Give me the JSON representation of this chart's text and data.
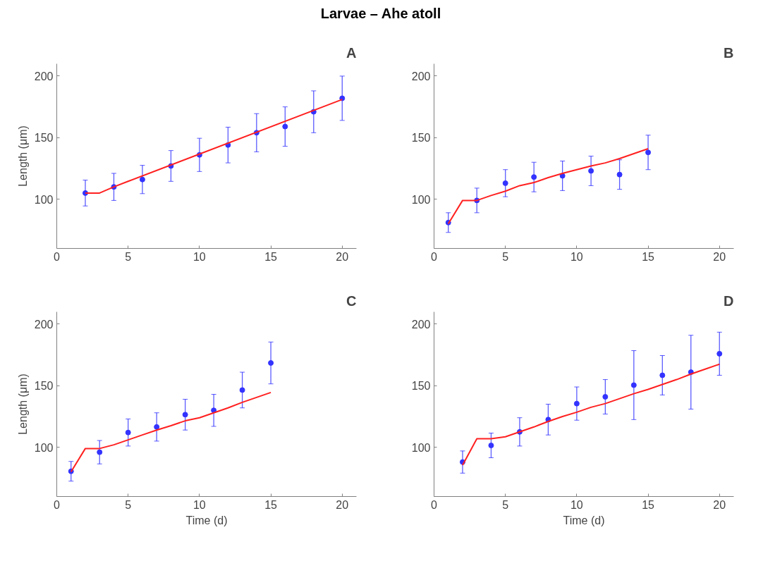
{
  "chart_data": [
    {
      "type": "scatter",
      "title": "A",
      "annotations": [
        "Larvae – Ahe atoll"
      ],
      "ylabel": "Length (μm)",
      "xlim": [
        0,
        21
      ],
      "xticks": [
        0,
        5,
        10,
        15,
        20
      ],
      "ylim": [
        60,
        210
      ],
      "yticks": [
        100,
        150,
        200
      ],
      "grid": false,
      "line_style": "solid",
      "series": [
        {
          "marker": "circle",
          "color": "#3333ff",
          "x": [
            2,
            4,
            6,
            8,
            10,
            12,
            14,
            16,
            18,
            20
          ],
          "values": [
            105,
            110,
            116,
            127,
            136,
            144,
            154,
            159,
            171,
            182
          ],
          "errors": [
            10.5,
            11,
            11.5,
            12.5,
            13.5,
            14.5,
            15.5,
            16,
            17,
            18
          ]
        },
        {
          "type": "line",
          "color": "#ff2020",
          "x": [
            2,
            3,
            4,
            5,
            20
          ],
          "values": [
            105,
            105,
            110,
            114.5,
            181
          ]
        }
      ]
    },
    {
      "type": "scatter",
      "title": "B",
      "xlim": [
        0,
        21
      ],
      "xticks": [
        0,
        5,
        10,
        15,
        20
      ],
      "ylim": [
        60,
        210
      ],
      "yticks": [
        100,
        150,
        200
      ],
      "grid": false,
      "line_style": "solid",
      "series": [
        {
          "marker": "circle",
          "color": "#3333ff",
          "x": [
            1,
            3,
            5,
            7,
            9,
            11,
            13,
            15
          ],
          "values": [
            81,
            99,
            113,
            118,
            119,
            123,
            120,
            138
          ],
          "errors": [
            8,
            10,
            11,
            12,
            12,
            12,
            12,
            14
          ]
        },
        {
          "type": "line",
          "color": "#ff2020",
          "x": [
            1,
            2,
            3,
            4,
            5,
            6,
            7,
            8,
            9,
            10,
            11,
            12,
            13,
            14,
            15
          ],
          "values": [
            80,
            99,
            99,
            103,
            106.5,
            111,
            113.5,
            117.5,
            121,
            124,
            127,
            129.5,
            133,
            137,
            141
          ]
        }
      ]
    },
    {
      "type": "scatter",
      "title": "C",
      "xlabel": "Time (d)",
      "ylabel": "Length (μm)",
      "xlim": [
        0,
        21
      ],
      "xticks": [
        0,
        5,
        10,
        15,
        20
      ],
      "ylim": [
        60,
        210
      ],
      "yticks": [
        100,
        150,
        200
      ],
      "grid": false,
      "line_style": "solid",
      "series": [
        {
          "marker": "circle",
          "color": "#3333ff",
          "x": [
            1,
            3,
            5,
            7,
            9,
            11,
            13,
            15
          ],
          "values": [
            80.5,
            96,
            112,
            116.5,
            126.5,
            130,
            146.5,
            168.5
          ],
          "errors": [
            8,
            9.5,
            11,
            11.5,
            12.5,
            13,
            14.5,
            17
          ]
        },
        {
          "type": "line",
          "color": "#ff2020",
          "x": [
            1,
            2,
            3,
            4,
            5,
            6,
            7,
            8,
            9,
            10,
            11,
            12,
            13,
            14,
            15
          ],
          "values": [
            80,
            99,
            99,
            102,
            106,
            110,
            114,
            117.5,
            121.5,
            124,
            128,
            132,
            136.5,
            140.5,
            144.5
          ]
        }
      ]
    },
    {
      "type": "scatter",
      "title": "D",
      "xlabel": "Time (d)",
      "xlim": [
        0,
        21
      ],
      "xticks": [
        0,
        5,
        10,
        15,
        20
      ],
      "ylim": [
        60,
        210
      ],
      "yticks": [
        100,
        150,
        200
      ],
      "grid": false,
      "line_style": "solid",
      "series": [
        {
          "marker": "circle",
          "color": "#3333ff",
          "x": [
            2,
            4,
            6,
            8,
            10,
            12,
            14,
            16,
            18,
            20
          ],
          "values": [
            88,
            101.5,
            112.5,
            122.5,
            135.5,
            141,
            150.5,
            158.5,
            161,
            176
          ],
          "errors": [
            9,
            10,
            11.5,
            12.5,
            13.5,
            14,
            28,
            16,
            30,
            17.5
          ]
        },
        {
          "type": "line",
          "color": "#ff2020",
          "x": [
            2,
            3,
            4,
            5,
            6,
            7,
            8,
            9,
            10,
            11,
            12,
            13,
            14,
            15,
            16,
            17,
            18,
            19,
            20
          ],
          "values": [
            85.5,
            107,
            107,
            108.5,
            112.5,
            116.5,
            121,
            125,
            128.5,
            132.5,
            135.5,
            139.5,
            143.5,
            147,
            151,
            155,
            159.5,
            163.5,
            167.5
          ]
        }
      ]
    }
  ]
}
